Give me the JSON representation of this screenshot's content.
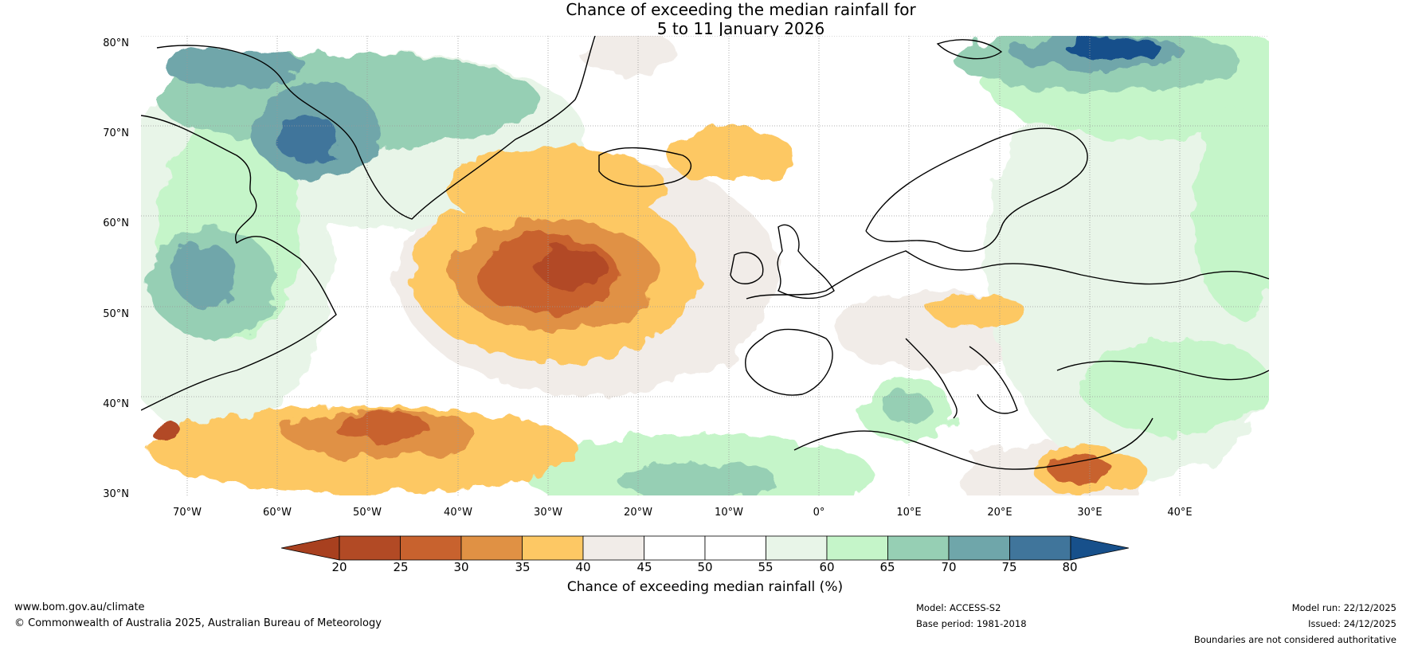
{
  "title": {
    "line1": "Chance of exceeding the median rainfall for",
    "line2": "5 to 11 January 2026"
  },
  "lat_labels": [
    "80°N",
    "70°N",
    "60°N",
    "50°N",
    "40°N",
    "30°N"
  ],
  "lon_labels": [
    "70°W",
    "60°W",
    "50°W",
    "40°W",
    "30°W",
    "20°W",
    "10°W",
    "0°",
    "10°E",
    "20°E",
    "30°E",
    "40°E"
  ],
  "colorbar": {
    "ticks": [
      "20",
      "25",
      "30",
      "35",
      "40",
      "45",
      "50",
      "55",
      "60",
      "65",
      "70",
      "75",
      "80"
    ],
    "colors": [
      "#a8401f",
      "#b24a25",
      "#c8622e",
      "#e09144",
      "#fdc864",
      "#f1ece8",
      "#ffffff",
      "#ffffff",
      "#e8f5e8",
      "#c5f5c9",
      "#96cfb4",
      "#6fa6aa",
      "#40759b",
      "#17508b"
    ],
    "label": "Chance of exceeding median rainfall (%)"
  },
  "footer": {
    "url": "www.bom.gov.au/climate",
    "copyright": "© Commonwealth of Australia 2025, Australian Bureau of Meteorology",
    "model": "Model: ACCESS-S2",
    "base_period": "Base period: 1981-2018",
    "model_run": "Model run: 22/12/2025",
    "issued": "Issued: 24/12/2025",
    "disclaimer": "Boundaries are not considered authoritative"
  }
}
